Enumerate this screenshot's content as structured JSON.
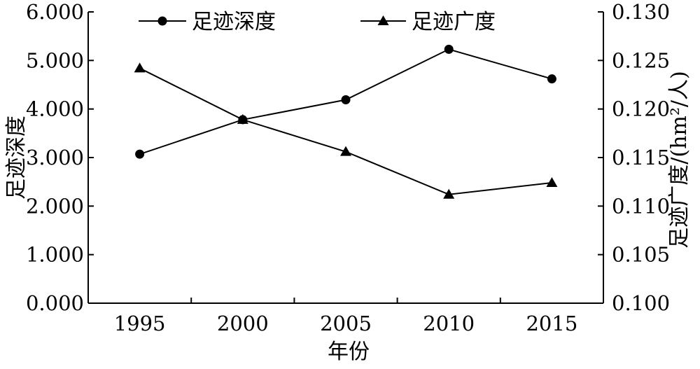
{
  "chart_data": {
    "type": "line",
    "x": [
      1995,
      2000,
      2005,
      2010,
      2015
    ],
    "x_tick_labels": [
      "1995",
      "2000",
      "2005",
      "2010",
      "2015"
    ],
    "xlabel": "年份",
    "ylabel_left": "足迹深度",
    "ylabel_right": "足迹广度/(hm²/人)",
    "ylim_left": [
      0,
      6
    ],
    "ylim_right": [
      0.1,
      0.13
    ],
    "y_left_ticks": [
      0,
      1,
      2,
      3,
      4,
      5,
      6
    ],
    "y_left_tick_labels": [
      "0.000",
      "1.000",
      "2.000",
      "3.000",
      "4.000",
      "5.000",
      "6.000"
    ],
    "y_right_ticks": [
      0.1,
      0.105,
      0.11,
      0.115,
      0.12,
      0.125,
      0.13
    ],
    "y_right_tick_labels": [
      "0.100",
      "0.105",
      "0.110",
      "0.115",
      "0.120",
      "0.125",
      "0.130"
    ],
    "grid": false,
    "legend_position": "top",
    "series": [
      {
        "name": "足迹深度",
        "axis": "left",
        "marker": "circle",
        "values": [
          3.07,
          3.78,
          4.19,
          5.23,
          4.62
        ]
      },
      {
        "name": "足迹广度",
        "axis": "right",
        "marker": "triangle",
        "values": [
          0.1242,
          0.1189,
          0.1156,
          0.1112,
          0.1124
        ]
      }
    ]
  }
}
